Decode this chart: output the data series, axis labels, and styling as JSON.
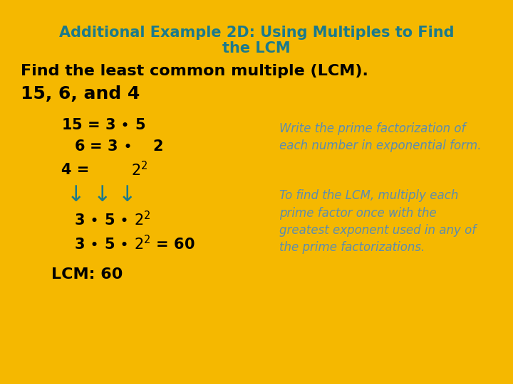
{
  "background_color": "#F5B800",
  "title_line1": "Additional Example 2D: Using Multiples to Find",
  "title_line2": "the LCM",
  "title_color": "#1B7A8C",
  "title_fontsize": 15,
  "subtitle": "Find the least common multiple (LCM).",
  "subtitle_color": "#000000",
  "subtitle_fontsize": 16,
  "numbers_label": "15, 6, and 4",
  "numbers_color": "#000000",
  "numbers_fontsize": 18,
  "body_color": "#000000",
  "body_fontsize": 15,
  "arrow_color": "#1B7A8C",
  "italic_color": "#5B8DB0",
  "italic_fontsize": 12,
  "lcm_color": "#000000",
  "lcm_fontsize": 16
}
